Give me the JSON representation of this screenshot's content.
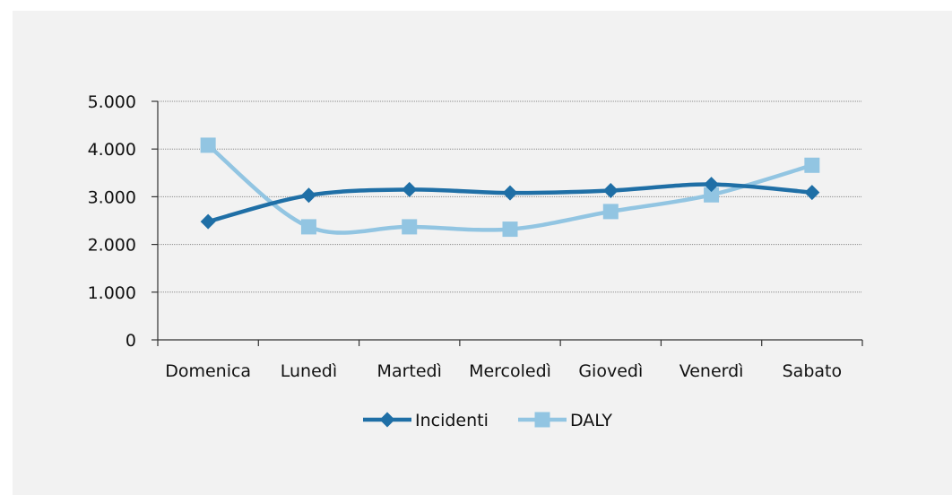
{
  "chart_data": {
    "type": "line",
    "categories": [
      "Domenica",
      "Lunedì",
      "Martedì",
      "Mercoledì",
      "Giovedì",
      "Venerdì",
      "Sabato"
    ],
    "series": [
      {
        "name": "Incidenti",
        "values": [
          2480,
          3030,
          3150,
          3080,
          3130,
          3260,
          3090
        ],
        "color": "#1f6fa6",
        "marker": "diamond"
      },
      {
        "name": "DALY",
        "values": [
          4080,
          2370,
          2370,
          2320,
          2690,
          3040,
          3660
        ],
        "color": "#92c5e2",
        "marker": "square"
      }
    ],
    "ylim": [
      0,
      5000
    ],
    "yticks": [
      0,
      1000,
      2000,
      3000,
      4000,
      5000
    ],
    "ytick_labels": [
      "0",
      "1.000",
      "2.000",
      "3.000",
      "4.000",
      "5.000"
    ],
    "grid": true,
    "smooth": true,
    "legend": "bottom",
    "title": "",
    "xlabel": "",
    "ylabel": ""
  }
}
